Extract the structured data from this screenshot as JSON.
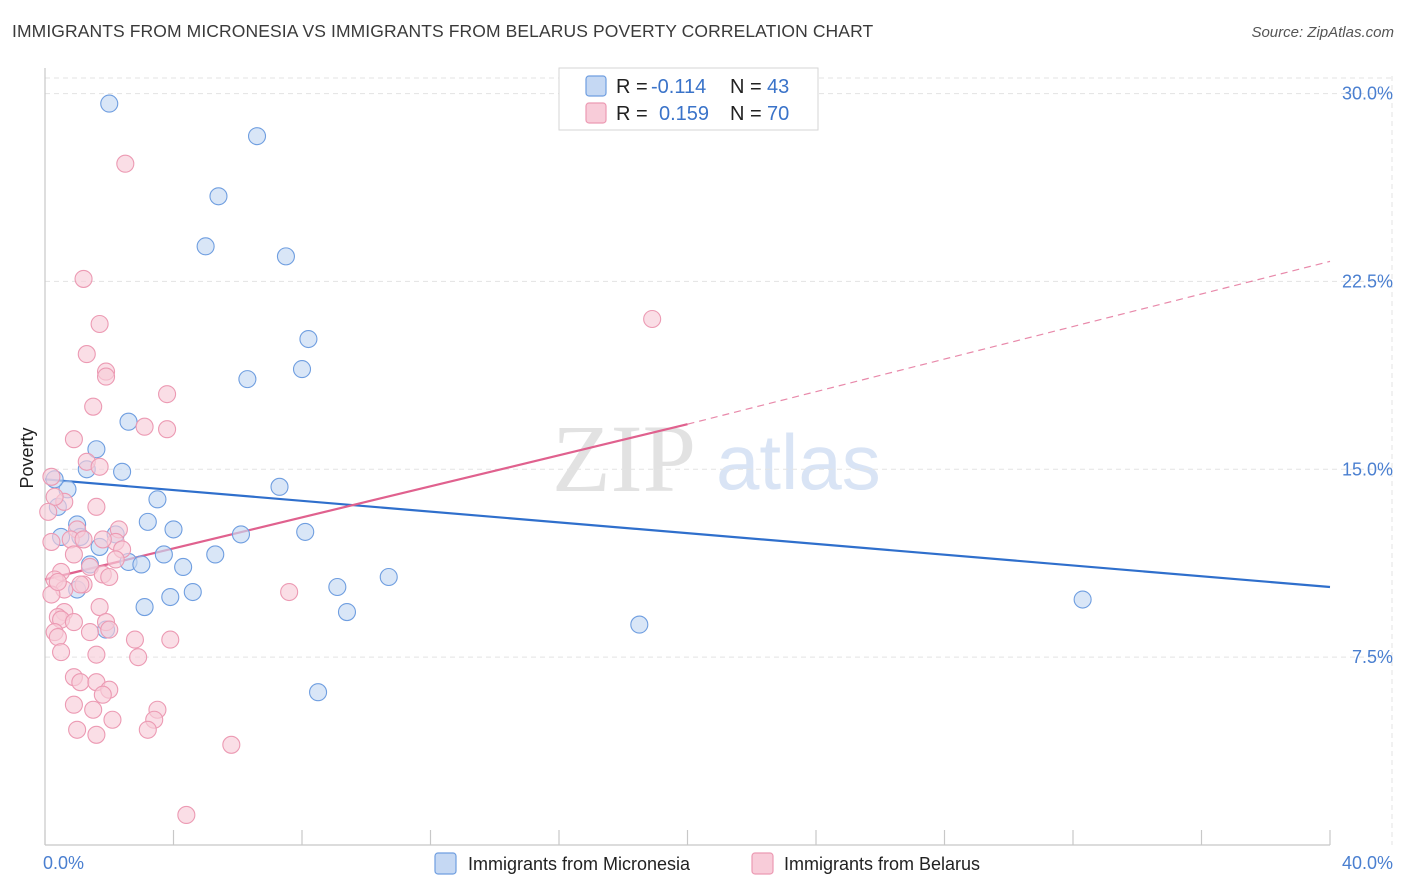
{
  "title": "IMMIGRANTS FROM MICRONESIA VS IMMIGRANTS FROM BELARUS POVERTY CORRELATION CHART",
  "source": "Source: ZipAtlas.com",
  "watermark": {
    "zip": "ZIP",
    "atlas": "atlas"
  },
  "colors": {
    "blue_fill": "#c5d8f3",
    "blue_stroke": "#6f9ee0",
    "blue_line": "#2f6fcc",
    "pink_fill": "#f8ccd9",
    "pink_stroke": "#ec9ab3",
    "pink_line": "#e0618e",
    "grid": "#e3e3e3",
    "tick_text": "#4a7fd0"
  },
  "legend": {
    "rows": [
      {
        "r_label": "R =",
        "r_value": "-0.114",
        "n_label": "N =",
        "n_value": "43"
      },
      {
        "r_label": "R =",
        "r_value": "0.159",
        "n_label": "N =",
        "n_value": "70"
      }
    ]
  },
  "chart_data": {
    "type": "scatter",
    "title": "IMMIGRANTS FROM MICRONESIA VS IMMIGRANTS FROM BELARUS POVERTY CORRELATION CHART",
    "xlabel": "",
    "ylabel": "Poverty",
    "xlim": [
      0,
      40
    ],
    "ylim": [
      0,
      31.5
    ],
    "x_tick_labels": [
      "0.0%",
      "40.0%"
    ],
    "y_ticks": [
      7.5,
      15.0,
      22.5,
      30.0
    ],
    "y_tick_labels": [
      "7.5%",
      "15.0%",
      "22.5%",
      "30.0%"
    ],
    "grid": true,
    "legend_position": "top-center",
    "series": [
      {
        "name": "Immigrants from Micronesia",
        "color": "blue",
        "trend": {
          "x": [
            0,
            40
          ],
          "y": [
            14.6,
            10.3
          ],
          "dashed_extension": false
        },
        "points": [
          [
            2.0,
            29.6
          ],
          [
            6.6,
            28.3
          ],
          [
            5.4,
            25.9
          ],
          [
            5.0,
            23.9
          ],
          [
            7.5,
            23.5
          ],
          [
            8.2,
            20.2
          ],
          [
            8.0,
            19.0
          ],
          [
            6.3,
            18.6
          ],
          [
            2.6,
            16.9
          ],
          [
            1.6,
            15.8
          ],
          [
            1.3,
            15.0
          ],
          [
            2.4,
            14.9
          ],
          [
            7.3,
            14.3
          ],
          [
            0.7,
            14.2
          ],
          [
            3.5,
            13.8
          ],
          [
            0.4,
            13.5
          ],
          [
            3.2,
            12.9
          ],
          [
            4.0,
            12.6
          ],
          [
            1.0,
            12.8
          ],
          [
            6.1,
            12.4
          ],
          [
            8.1,
            12.5
          ],
          [
            0.5,
            12.3
          ],
          [
            1.1,
            12.3
          ],
          [
            2.2,
            12.4
          ],
          [
            1.7,
            11.9
          ],
          [
            3.7,
            11.6
          ],
          [
            5.3,
            11.6
          ],
          [
            2.6,
            11.3
          ],
          [
            1.4,
            11.2
          ],
          [
            3.0,
            11.2
          ],
          [
            4.3,
            11.1
          ],
          [
            10.7,
            10.7
          ],
          [
            9.1,
            10.3
          ],
          [
            1.0,
            10.2
          ],
          [
            4.6,
            10.1
          ],
          [
            3.9,
            9.9
          ],
          [
            3.1,
            9.5
          ],
          [
            9.4,
            9.3
          ],
          [
            32.3,
            9.8
          ],
          [
            18.5,
            8.8
          ],
          [
            1.9,
            8.6
          ],
          [
            8.5,
            6.1
          ],
          [
            0.3,
            14.6
          ]
        ]
      },
      {
        "name": "Immigrants from Belarus",
        "color": "pink",
        "trend": {
          "x": [
            0,
            20
          ],
          "y": [
            10.6,
            16.8
          ],
          "dashed_extension": true,
          "dash_to": [
            40,
            23.3
          ]
        },
        "points": [
          [
            2.5,
            27.2
          ],
          [
            1.2,
            22.6
          ],
          [
            1.7,
            20.8
          ],
          [
            18.9,
            21.0
          ],
          [
            1.3,
            19.6
          ],
          [
            1.9,
            18.9
          ],
          [
            1.9,
            18.7
          ],
          [
            3.8,
            18.0
          ],
          [
            1.5,
            17.5
          ],
          [
            3.1,
            16.7
          ],
          [
            3.8,
            16.6
          ],
          [
            0.9,
            16.2
          ],
          [
            1.3,
            15.3
          ],
          [
            1.7,
            15.1
          ],
          [
            0.6,
            13.7
          ],
          [
            1.6,
            13.5
          ],
          [
            0.3,
            13.9
          ],
          [
            2.3,
            12.6
          ],
          [
            1.0,
            12.6
          ],
          [
            0.8,
            12.2
          ],
          [
            2.2,
            12.1
          ],
          [
            0.2,
            12.1
          ],
          [
            1.2,
            12.2
          ],
          [
            2.4,
            11.8
          ],
          [
            0.9,
            11.6
          ],
          [
            1.4,
            11.1
          ],
          [
            0.5,
            10.9
          ],
          [
            1.8,
            10.8
          ],
          [
            0.3,
            10.6
          ],
          [
            1.2,
            10.4
          ],
          [
            0.6,
            10.2
          ],
          [
            0.2,
            10.0
          ],
          [
            7.6,
            10.1
          ],
          [
            1.7,
            9.5
          ],
          [
            0.6,
            9.3
          ],
          [
            0.4,
            9.1
          ],
          [
            0.5,
            9.0
          ],
          [
            0.9,
            8.9
          ],
          [
            1.9,
            8.9
          ],
          [
            0.3,
            8.5
          ],
          [
            0.4,
            8.3
          ],
          [
            1.4,
            8.5
          ],
          [
            2.0,
            8.6
          ],
          [
            2.8,
            8.2
          ],
          [
            3.9,
            8.2
          ],
          [
            0.5,
            7.7
          ],
          [
            1.6,
            7.6
          ],
          [
            2.9,
            7.5
          ],
          [
            0.9,
            6.7
          ],
          [
            1.1,
            6.5
          ],
          [
            1.6,
            6.5
          ],
          [
            2.0,
            6.2
          ],
          [
            1.8,
            6.0
          ],
          [
            0.9,
            5.6
          ],
          [
            3.5,
            5.4
          ],
          [
            1.5,
            5.4
          ],
          [
            3.4,
            5.0
          ],
          [
            2.1,
            5.0
          ],
          [
            3.2,
            4.6
          ],
          [
            1.0,
            4.6
          ],
          [
            1.6,
            4.4
          ],
          [
            5.8,
            4.0
          ],
          [
            4.4,
            1.2
          ],
          [
            0.2,
            14.7
          ],
          [
            0.1,
            13.3
          ],
          [
            0.4,
            10.5
          ],
          [
            1.1,
            10.4
          ],
          [
            2.0,
            10.7
          ],
          [
            2.2,
            11.4
          ],
          [
            1.8,
            12.2
          ]
        ]
      }
    ]
  }
}
